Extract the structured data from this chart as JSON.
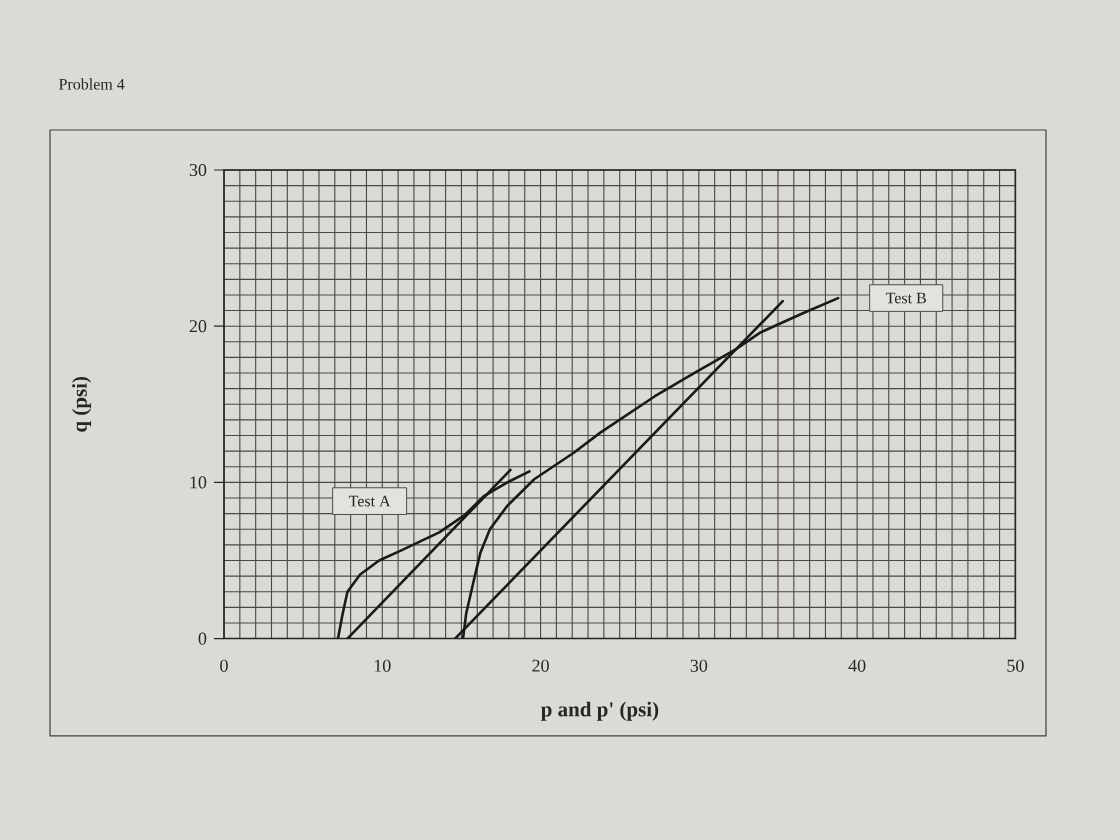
{
  "chart_data": {
    "type": "line",
    "title": "Problem 4",
    "xlabel": "p and p' (psi)",
    "ylabel": "q (psi)",
    "xlim": [
      0,
      50
    ],
    "ylim": [
      0,
      30
    ],
    "xticks": [
      0,
      10,
      20,
      30,
      40,
      50
    ],
    "yticks": [
      0,
      10,
      20,
      30
    ],
    "grid": true,
    "marker": "none",
    "line_style": "solid",
    "series": [
      {
        "color": "#1a1a1a",
        "x": [
          7.8,
          18.1
        ],
        "values": [
          0,
          10.8
        ]
      },
      {
        "color": "#1a1a1a",
        "x": [
          7.2,
          7.5,
          7.8,
          8.6,
          9.8,
          11.1,
          13.6,
          15.2,
          16.4,
          17.9,
          19.3
        ],
        "values": [
          0,
          1.6,
          3.0,
          4.1,
          5.0,
          5.6,
          6.8,
          7.9,
          9.1,
          10.0,
          10.7
        ]
      },
      {
        "color": "#1a1a1a",
        "x": [
          14.6,
          35.3
        ],
        "values": [
          0,
          21.6
        ]
      },
      {
        "color": "#1a1a1a",
        "x": [
          15.1,
          15.3,
          15.8,
          16.2,
          16.8,
          17.9,
          19.6,
          22.1,
          23.8,
          27.2,
          29.7,
          32.3,
          33.9,
          36.5,
          38.8
        ],
        "values": [
          0,
          1.6,
          3.8,
          5.5,
          7.0,
          8.5,
          10.2,
          11.9,
          13.2,
          15.5,
          17.0,
          18.5,
          19.6,
          20.8,
          21.8
        ]
      }
    ],
    "annotations": [
      {
        "text": "Test A",
        "x": 9.2,
        "y": 8.8
      },
      {
        "text": "Test B",
        "x": 43.1,
        "y": 21.8
      }
    ]
  }
}
